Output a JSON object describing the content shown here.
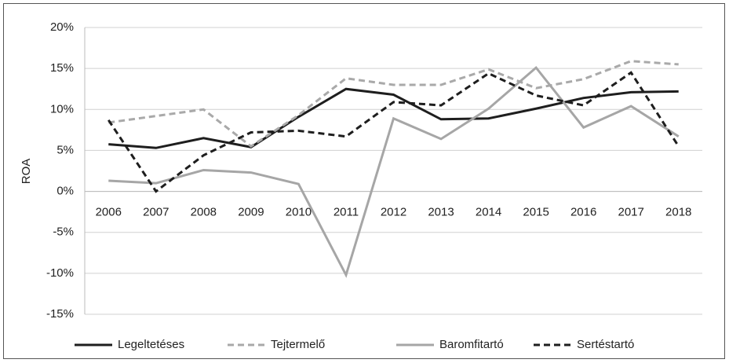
{
  "chart_data": {
    "type": "line",
    "y_label": "ROA",
    "categories": [
      "2006",
      "2007",
      "2008",
      "2009",
      "2010",
      "2011",
      "2012",
      "2013",
      "2014",
      "2015",
      "2016",
      "2017",
      "2018"
    ],
    "series": [
      {
        "name": "Legeltetéses",
        "color": "#1e1e1e",
        "dashed": false,
        "values": [
          5.75,
          5.3,
          6.5,
          5.4,
          9.1,
          12.5,
          11.8,
          8.8,
          8.9,
          10.1,
          11.4,
          12.1,
          12.2
        ]
      },
      {
        "name": "Tejtermelő",
        "color": "#a9a9a9",
        "dashed": true,
        "values": [
          8.4,
          9.2,
          10.0,
          5.5,
          9.3,
          13.8,
          13.0,
          13.0,
          14.9,
          12.6,
          13.7,
          15.9,
          15.5
        ]
      },
      {
        "name": "Baromfitartó",
        "color": "#a6a6a6",
        "dashed": false,
        "values": [
          1.3,
          1.0,
          2.6,
          2.3,
          0.9,
          -10.2,
          8.9,
          6.4,
          10.1,
          15.1,
          7.8,
          10.4,
          6.7
        ]
      },
      {
        "name": "Sertéstartó",
        "color": "#1e1e1e",
        "dashed": true,
        "values": [
          8.7,
          0.0,
          4.4,
          7.2,
          7.4,
          6.7,
          10.9,
          10.5,
          14.4,
          11.7,
          10.5,
          14.5,
          5.5
        ]
      }
    ],
    "ylim": [
      -15,
      20
    ],
    "yticks": [
      {
        "value": -15,
        "label": "-15%"
      },
      {
        "value": -10,
        "label": "-10%"
      },
      {
        "value": -5,
        "label": "-5%"
      },
      {
        "value": 0,
        "label": "0%"
      },
      {
        "value": 5,
        "label": "5%"
      },
      {
        "value": 10,
        "label": "10%"
      },
      {
        "value": 15,
        "label": "15%"
      },
      {
        "value": 20,
        "label": "20%"
      }
    ],
    "grid": true,
    "legend": "bottom"
  }
}
